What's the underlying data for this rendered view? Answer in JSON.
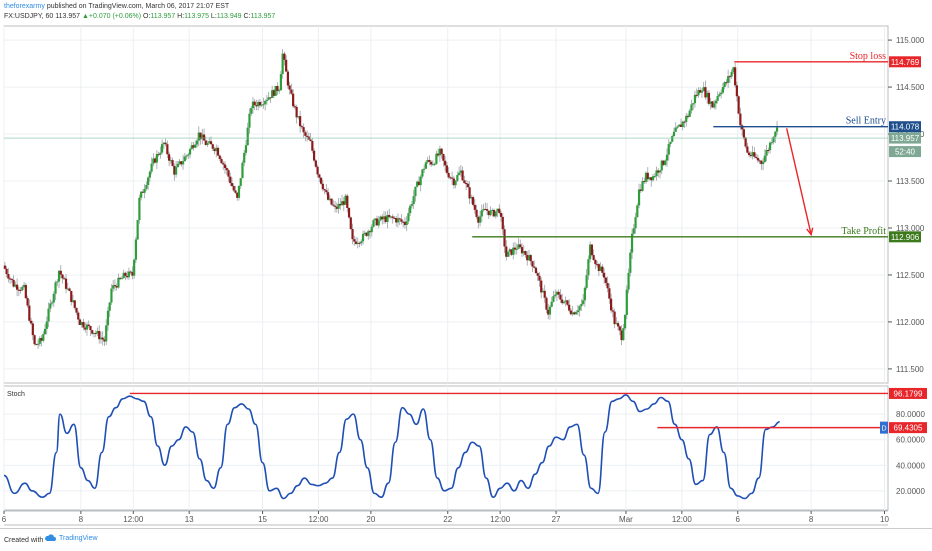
{
  "header": {
    "author": "theforexarmy",
    "published": "published on TradingView.com, March 06, 2017 21:07 EST",
    "symbol": "FX:USDJPY, 60",
    "last": "113.957",
    "up_arrow": "▲",
    "change": "+0.070 (+0.06%)",
    "o_label": "O:",
    "o_value": "113.957",
    "h_label": "H:",
    "h_value": "113.975",
    "l_label": "L:",
    "l_value": "113.949",
    "c_label": "C:",
    "c_value": "113.957"
  },
  "footer": {
    "created_with": "Created with",
    "brand": "TradingView"
  },
  "colors": {
    "up": "#2e9e3b",
    "down": "#8b1a1a",
    "red": "#e8262a",
    "blue": "#1e4f8c",
    "green": "#3c7a1c",
    "stoch": "#1f4fb4",
    "grid": "#eceff2",
    "axis": "#555555"
  },
  "chart_data": [
    {
      "type": "candlestick",
      "name": "price",
      "symbol": "FX:USDJPY",
      "timeframe": "60",
      "ylim": [
        111.35,
        115.15
      ],
      "yticks": [
        111.5,
        112.0,
        112.5,
        113.0,
        113.5,
        114.0,
        114.5,
        115.0
      ],
      "ytick_labels": [
        "111.500",
        "112.000",
        "112.500",
        "113.000",
        "113.500",
        "114.000",
        "114.500",
        "115.000"
      ],
      "xticks": [
        {
          "label": "6",
          "x": 0
        },
        {
          "label": "8",
          "x": 22
        },
        {
          "label": "12:00",
          "x": 37
        },
        {
          "label": "13",
          "x": 53
        },
        {
          "label": "15",
          "x": 74
        },
        {
          "label": "12:00",
          "x": 90
        },
        {
          "label": "20",
          "x": 105
        },
        {
          "label": "22",
          "x": 127
        },
        {
          "label": "12:00",
          "x": 142
        },
        {
          "label": "27",
          "x": 158
        },
        {
          "label": "Mar",
          "x": 178
        },
        {
          "label": "12:00",
          "x": 194
        },
        {
          "label": "6",
          "x": 210
        },
        {
          "label": "8",
          "x": 231
        },
        {
          "label": "10",
          "x": 252
        }
      ],
      "x_range": [
        0,
        253
      ],
      "path_points": [
        [
          0,
          112.6
        ],
        [
          3,
          112.4
        ],
        [
          6,
          112.35
        ],
        [
          9,
          111.75
        ],
        [
          11,
          111.8
        ],
        [
          14,
          112.25
        ],
        [
          16,
          112.55
        ],
        [
          19,
          112.3
        ],
        [
          22,
          112.0
        ],
        [
          26,
          111.9
        ],
        [
          29,
          111.8
        ],
        [
          31,
          112.35
        ],
        [
          35,
          112.5
        ],
        [
          37,
          112.5
        ],
        [
          39,
          113.3
        ],
        [
          41,
          113.5
        ],
        [
          43,
          113.7
        ],
        [
          46,
          113.9
        ],
        [
          49,
          113.6
        ],
        [
          53,
          113.8
        ],
        [
          56,
          114.0
        ],
        [
          58,
          113.9
        ],
        [
          61,
          113.85
        ],
        [
          64,
          113.6
        ],
        [
          66,
          113.4
        ],
        [
          67,
          113.3
        ],
        [
          69,
          113.8
        ],
        [
          71,
          114.3
        ],
        [
          74,
          114.35
        ],
        [
          76,
          114.4
        ],
        [
          79,
          114.5
        ],
        [
          80,
          114.85
        ],
        [
          82,
          114.45
        ],
        [
          84,
          114.2
        ],
        [
          86,
          114.0
        ],
        [
          88,
          113.9
        ],
        [
          90,
          113.6
        ],
        [
          93,
          113.3
        ],
        [
          95,
          113.2
        ],
        [
          98,
          113.3
        ],
        [
          100,
          112.85
        ],
        [
          103,
          112.9
        ],
        [
          106,
          113.05
        ],
        [
          109,
          113.1
        ],
        [
          112,
          113.1
        ],
        [
          115,
          113.05
        ],
        [
          118,
          113.4
        ],
        [
          121,
          113.7
        ],
        [
          123,
          113.7
        ],
        [
          125,
          113.8
        ],
        [
          127,
          113.6
        ],
        [
          129,
          113.5
        ],
        [
          131,
          113.6
        ],
        [
          134,
          113.3
        ],
        [
          136,
          113.1
        ],
        [
          138,
          113.2
        ],
        [
          140,
          113.15
        ],
        [
          142,
          113.2
        ],
        [
          144,
          112.7
        ],
        [
          147,
          112.8
        ],
        [
          149,
          112.75
        ],
        [
          152,
          112.6
        ],
        [
          154,
          112.35
        ],
        [
          156,
          112.1
        ],
        [
          158,
          112.3
        ],
        [
          161,
          112.2
        ],
        [
          163,
          112.1
        ],
        [
          166,
          112.2
        ],
        [
          168,
          112.8
        ],
        [
          170,
          112.6
        ],
        [
          172,
          112.5
        ],
        [
          175,
          112.0
        ],
        [
          177,
          111.85
        ],
        [
          178,
          112.1
        ],
        [
          180,
          112.9
        ],
        [
          182,
          113.4
        ],
        [
          184,
          113.55
        ],
        [
          186,
          113.55
        ],
        [
          189,
          113.7
        ],
        [
          192,
          114.0
        ],
        [
          194,
          114.1
        ],
        [
          196,
          114.2
        ],
        [
          198,
          114.4
        ],
        [
          200,
          114.5
        ],
        [
          203,
          114.3
        ],
        [
          205,
          114.45
        ],
        [
          207,
          114.55
        ],
        [
          209,
          114.7
        ],
        [
          211,
          114.1
        ],
        [
          213,
          113.8
        ],
        [
          215,
          113.75
        ],
        [
          217,
          113.7
        ],
        [
          219,
          113.85
        ],
        [
          221,
          114.05
        ]
      ],
      "series": [
        {
          "name": "Stop loss",
          "value": 114.769,
          "label": "114.769",
          "color": "#e8262a",
          "x_start": 209,
          "x_end": 253
        },
        {
          "name": "Sell Entry",
          "value": 114.078,
          "label": "114.078",
          "color": "#1e4f8c",
          "x_start": 203,
          "x_end": 253
        },
        {
          "name": "Take Profit",
          "value": 112.906,
          "label": "112.906",
          "color": "#3c7a1c",
          "x_start": 134,
          "x_end": 253
        }
      ],
      "last_price": {
        "value": 113.957,
        "label": "113.957"
      },
      "countdown": "52:40",
      "arrow": {
        "from_x": 224,
        "from_y": 114.06,
        "to_x": 231,
        "to_y": 112.93
      }
    },
    {
      "type": "line",
      "name": "Stoch",
      "title": "Stoch",
      "ylim": [
        5,
        102
      ],
      "yticks": [
        20,
        40,
        60,
        80
      ],
      "ytick_labels": [
        "20.0000",
        "40.0000",
        "60.0000",
        "80.0000"
      ],
      "x": [
        0,
        3,
        6,
        8,
        11,
        13,
        15,
        16,
        18,
        20,
        22,
        24,
        26,
        28,
        30,
        32,
        34,
        36,
        38,
        40,
        42,
        44,
        46,
        48,
        50,
        52,
        54,
        56,
        58,
        60,
        62,
        64,
        66,
        68,
        70,
        72,
        74,
        76,
        78,
        80,
        82,
        84,
        86,
        88,
        90,
        92,
        94,
        96,
        98,
        100,
        102,
        104,
        106,
        108,
        110,
        112,
        114,
        116,
        118,
        120,
        122,
        124,
        126,
        128,
        130,
        132,
        134,
        136,
        138,
        140,
        142,
        144,
        146,
        148,
        150,
        152,
        154,
        156,
        158,
        160,
        162,
        164,
        166,
        168,
        170,
        172,
        174,
        176,
        178,
        180,
        182,
        184,
        186,
        188,
        190,
        192,
        194,
        196,
        198,
        200,
        202,
        204,
        206,
        208,
        210,
        212,
        214,
        216,
        218,
        220,
        222
      ],
      "values": [
        32,
        18,
        26,
        20,
        15,
        18,
        50,
        80,
        65,
        72,
        38,
        28,
        22,
        50,
        78,
        85,
        92,
        94,
        92,
        90,
        78,
        55,
        40,
        55,
        60,
        70,
        66,
        45,
        28,
        22,
        38,
        72,
        85,
        88,
        84,
        72,
        42,
        20,
        22,
        14,
        18,
        24,
        30,
        25,
        24,
        26,
        30,
        50,
        76,
        80,
        60,
        38,
        18,
        15,
        26,
        58,
        85,
        80,
        72,
        84,
        60,
        30,
        20,
        22,
        38,
        50,
        58,
        55,
        30,
        15,
        22,
        26,
        20,
        28,
        22,
        33,
        42,
        55,
        62,
        60,
        70,
        72,
        48,
        22,
        18,
        66,
        90,
        92,
        95,
        90,
        82,
        84,
        88,
        93,
        90,
        72,
        60,
        45,
        25,
        28,
        64,
        70,
        50,
        22,
        16,
        14,
        18,
        30,
        68,
        70,
        74
      ],
      "series": [
        {
          "name": "high",
          "value": 96.1799,
          "label": "96.1799",
          "color": "#e8262a",
          "x_start": 36,
          "x_end": 253
        },
        {
          "name": "level",
          "value": 69.4305,
          "label": "69.4305",
          "color": "#e8262a",
          "x_start": 187,
          "x_end": 253
        }
      ],
      "value_label": "D"
    }
  ]
}
